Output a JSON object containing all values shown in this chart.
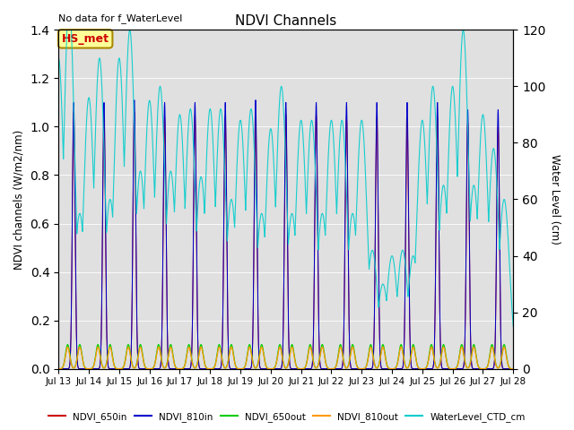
{
  "title": "NDVI Channels",
  "top_left_text": "No data for f_WaterLevel",
  "annotation_text": "HS_met",
  "ylabel_left": "NDVI channels (W/m2/nm)",
  "ylabel_right": "Water Level (cm)",
  "xlim": [
    13,
    28
  ],
  "ylim_left": [
    0.0,
    1.4
  ],
  "ylim_right": [
    0,
    120
  ],
  "bg_color": "#e0e0e0",
  "colors": {
    "NDVI_650in": "#cc0000",
    "NDVI_810in": "#0000cc",
    "NDVI_650out": "#00cc00",
    "NDVI_810out": "#ff9900",
    "WaterLevel_CTD_cm": "#00cccc"
  },
  "xtick_positions": [
    13,
    14,
    15,
    16,
    17,
    18,
    19,
    20,
    21,
    22,
    23,
    24,
    25,
    26,
    27,
    28
  ],
  "xtick_labels": [
    "Jul 13",
    "Jul 14",
    "Jul 15",
    "Jul 16",
    "Jul 17",
    "Jul 18",
    "Jul 19",
    "Jul 20",
    "Jul 21",
    "Jul 22",
    "Jul 23",
    "Jul 24",
    "Jul 25",
    "Jul 26",
    "Jul 27",
    "Jul 28"
  ],
  "yticks_left": [
    0.0,
    0.2,
    0.4,
    0.6,
    0.8,
    1.0,
    1.2,
    1.4
  ],
  "yticks_right": [
    0,
    20,
    40,
    60,
    80,
    100,
    120
  ],
  "annotation_box_facecolor": "#ffff99",
  "annotation_box_edgecolor": "#aa8800",
  "water_peaks": [
    [
      13.0,
      110
    ],
    [
      13.35,
      130
    ],
    [
      13.7,
      55
    ],
    [
      14.0,
      96
    ],
    [
      14.35,
      110
    ],
    [
      14.7,
      60
    ],
    [
      15.0,
      110
    ],
    [
      15.35,
      120
    ],
    [
      15.7,
      70
    ],
    [
      16.0,
      95
    ],
    [
      16.35,
      100
    ],
    [
      16.7,
      70
    ],
    [
      17.0,
      90
    ],
    [
      17.35,
      92
    ],
    [
      17.7,
      68
    ],
    [
      18.0,
      92
    ],
    [
      18.35,
      92
    ],
    [
      18.7,
      60
    ],
    [
      19.0,
      88
    ],
    [
      19.35,
      92
    ],
    [
      19.7,
      55
    ],
    [
      20.0,
      85
    ],
    [
      20.35,
      100
    ],
    [
      20.7,
      55
    ],
    [
      21.0,
      88
    ],
    [
      21.35,
      88
    ],
    [
      21.7,
      55
    ],
    [
      22.0,
      88
    ],
    [
      22.35,
      88
    ],
    [
      22.7,
      55
    ],
    [
      23.0,
      88
    ],
    [
      23.35,
      42
    ],
    [
      23.7,
      30
    ],
    [
      24.0,
      40
    ],
    [
      24.35,
      42
    ],
    [
      24.7,
      40
    ],
    [
      25.0,
      88
    ],
    [
      25.35,
      100
    ],
    [
      25.7,
      65
    ],
    [
      26.0,
      100
    ],
    [
      26.35,
      120
    ],
    [
      26.7,
      65
    ],
    [
      27.0,
      90
    ],
    [
      27.35,
      78
    ],
    [
      27.7,
      60
    ]
  ],
  "ndvi_peaks": [
    {
      "day": 13,
      "p650in": 1.06,
      "p810in": 1.1
    },
    {
      "day": 14,
      "p650in": 1.05,
      "p810in": 1.1
    },
    {
      "day": 15,
      "p650in": 1.06,
      "p810in": 1.11
    },
    {
      "day": 16,
      "p650in": 1.04,
      "p810in": 1.1
    },
    {
      "day": 17,
      "p650in": 1.05,
      "p810in": 1.1
    },
    {
      "day": 18,
      "p650in": 1.04,
      "p810in": 1.1
    },
    {
      "day": 19,
      "p650in": 1.05,
      "p810in": 1.11
    },
    {
      "day": 20,
      "p650in": 1.05,
      "p810in": 1.1
    },
    {
      "day": 21,
      "p650in": 1.05,
      "p810in": 1.1
    },
    {
      "day": 22,
      "p650in": 1.04,
      "p810in": 1.1
    },
    {
      "day": 23,
      "p650in": 1.04,
      "p810in": 1.1
    },
    {
      "day": 24,
      "p650in": 1.04,
      "p810in": 1.1
    },
    {
      "day": 25,
      "p650in": 1.04,
      "p810in": 1.1
    },
    {
      "day": 26,
      "p650in": 1.02,
      "p810in": 1.07
    },
    {
      "day": 27,
      "p650in": 1.0,
      "p810in": 1.07
    }
  ]
}
